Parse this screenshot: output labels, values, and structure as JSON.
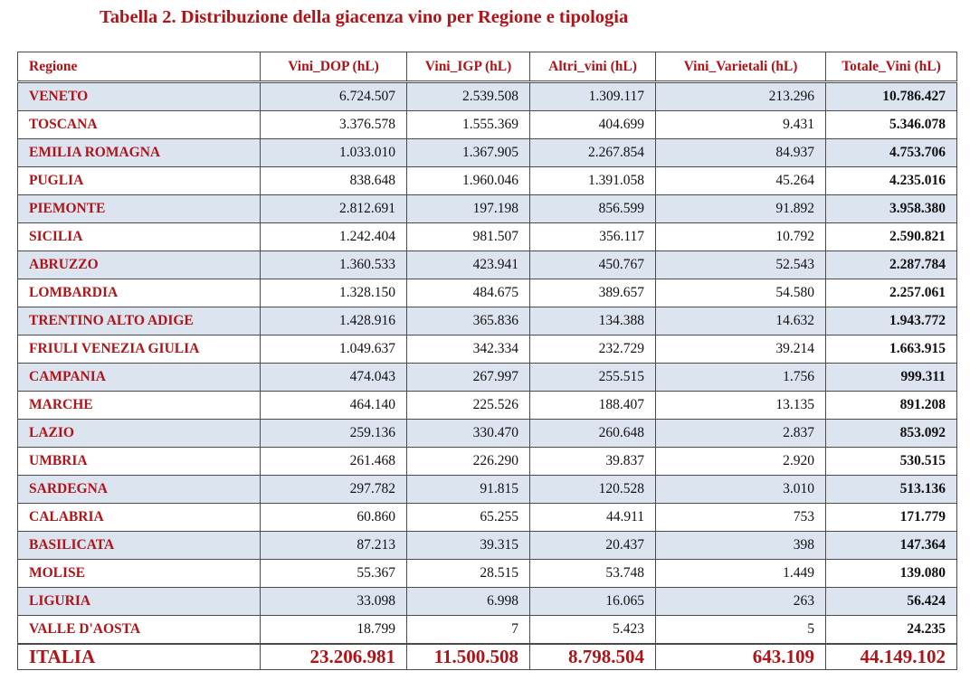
{
  "title": "Tabella 2. Distribuzione della giacenza vino per Regione e tipologia",
  "columns": [
    "Regione",
    "Vini_DOP (hL)",
    "Vini_IGP (hL)",
    "Altri_vini (hL)",
    "Vini_Varietali (hL)",
    "Totale_Vini (hL)"
  ],
  "rows": [
    [
      "VENETO",
      "6.724.507",
      "2.539.508",
      "1.309.117",
      "213.296",
      "10.786.427"
    ],
    [
      "TOSCANA",
      "3.376.578",
      "1.555.369",
      "404.699",
      "9.431",
      "5.346.078"
    ],
    [
      "EMILIA ROMAGNA",
      "1.033.010",
      "1.367.905",
      "2.267.854",
      "84.937",
      "4.753.706"
    ],
    [
      "PUGLIA",
      "838.648",
      "1.960.046",
      "1.391.058",
      "45.264",
      "4.235.016"
    ],
    [
      "PIEMONTE",
      "2.812.691",
      "197.198",
      "856.599",
      "91.892",
      "3.958.380"
    ],
    [
      "SICILIA",
      "1.242.404",
      "981.507",
      "356.117",
      "10.792",
      "2.590.821"
    ],
    [
      "ABRUZZO",
      "1.360.533",
      "423.941",
      "450.767",
      "52.543",
      "2.287.784"
    ],
    [
      "LOMBARDIA",
      "1.328.150",
      "484.675",
      "389.657",
      "54.580",
      "2.257.061"
    ],
    [
      "TRENTINO ALTO ADIGE",
      "1.428.916",
      "365.836",
      "134.388",
      "14.632",
      "1.943.772"
    ],
    [
      "FRIULI VENEZIA GIULIA",
      "1.049.637",
      "342.334",
      "232.729",
      "39.214",
      "1.663.915"
    ],
    [
      "CAMPANIA",
      "474.043",
      "267.997",
      "255.515",
      "1.756",
      "999.311"
    ],
    [
      "MARCHE",
      "464.140",
      "225.526",
      "188.407",
      "13.135",
      "891.208"
    ],
    [
      "LAZIO",
      "259.136",
      "330.470",
      "260.648",
      "2.837",
      "853.092"
    ],
    [
      "UMBRIA",
      "261.468",
      "226.290",
      "39.837",
      "2.920",
      "530.515"
    ],
    [
      "SARDEGNA",
      "297.782",
      "91.815",
      "120.528",
      "3.010",
      "513.136"
    ],
    [
      "CALABRIA",
      "60.860",
      "65.255",
      "44.911",
      "753",
      "171.779"
    ],
    [
      "BASILICATA",
      "87.213",
      "39.315",
      "20.437",
      "398",
      "147.364"
    ],
    [
      "MOLISE",
      "55.367",
      "28.515",
      "53.748",
      "1.449",
      "139.080"
    ],
    [
      "LIGURIA",
      "33.098",
      "6.998",
      "16.065",
      "263",
      "56.424"
    ],
    [
      "VALLE D'AOSTA",
      "18.799",
      "7",
      "5.423",
      "5",
      "24.235"
    ]
  ],
  "total": [
    "ITALIA",
    "23.206.981",
    "11.500.508",
    "8.798.504",
    "643.109",
    "44.149.102"
  ],
  "colors": {
    "accent_red": "#b01418",
    "row_shade": "#dce4f0"
  }
}
